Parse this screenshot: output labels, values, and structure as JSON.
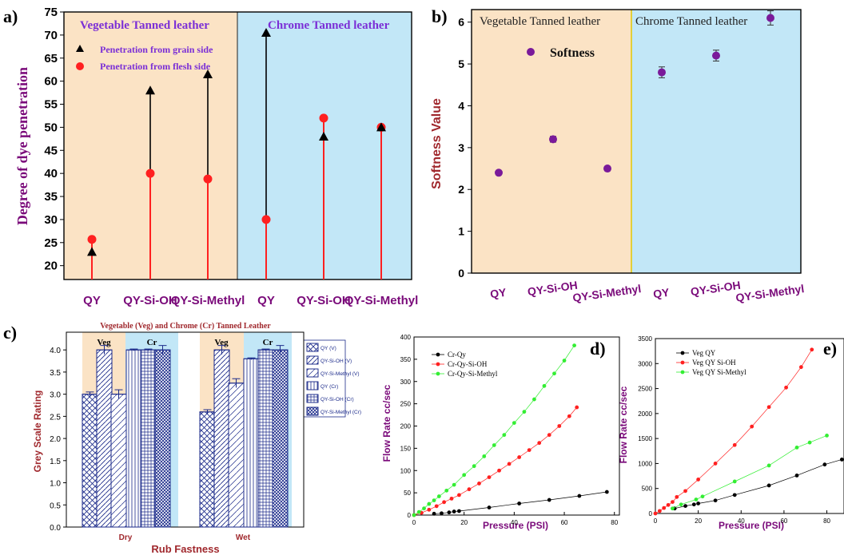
{
  "colors": {
    "veg_bg": "#fbe3c5",
    "cr_bg": "#c2e7f7",
    "a_title": "#7b2fd6",
    "axis_label": "#7a0a7a",
    "bar_stroke": "#1b2a8a",
    "c_ylabel": "#a0282d",
    "c_title": "#a0282d",
    "tick_purple": "#7a0a7a",
    "black": "#000000",
    "red": "#ff2020",
    "green": "#33ee33"
  },
  "panels": {
    "a": "a)",
    "b": "b)",
    "c": "c)",
    "d": "d)",
    "e": "e)"
  },
  "chart_data": [
    {
      "id": "a",
      "type": "scatter",
      "region_labels": [
        "Vegetable Tanned leather",
        "Chrome Tanned leather"
      ],
      "ylabel": "Degree of dye penetration",
      "ylim": [
        17,
        75
      ],
      "yticks": [
        20,
        25,
        30,
        35,
        40,
        45,
        50,
        55,
        60,
        65,
        70,
        75
      ],
      "categories": [
        "QY",
        "QY-Si-OH",
        "QY-Si-Methyl",
        "QY",
        "QY-Si-OH",
        "QY-Si-Methyl"
      ],
      "series": [
        {
          "name": "Penetration from grain side",
          "marker": "triangle",
          "values": [
            23,
            58,
            61.5,
            70.5,
            48,
            50
          ]
        },
        {
          "name": "Penetration from flesh side",
          "marker": "circle",
          "values": [
            25.7,
            40,
            38.8,
            30,
            52,
            50
          ]
        }
      ]
    },
    {
      "id": "b",
      "type": "scatter",
      "region_labels": [
        "Vegetable Tanned leather",
        "Chrome Tanned leather"
      ],
      "legend": "Softness",
      "ylabel": "Softness Value",
      "ylim": [
        0,
        6.3
      ],
      "yticks": [
        0,
        1,
        2,
        3,
        4,
        5,
        6
      ],
      "categories": [
        "QY",
        "QY-Si-OH",
        "QY-Si-Methyl",
        "QY",
        "QY-Si-OH",
        "QY-Si-Methyl"
      ],
      "values": [
        2.4,
        3.2,
        2.5,
        4.8,
        5.2,
        6.1
      ],
      "errors": [
        0.04,
        0.07,
        0.05,
        0.13,
        0.13,
        0.17
      ]
    },
    {
      "id": "c",
      "type": "bar",
      "title": "Vegetable (Veg) and Chrome (Cr) Tanned Leather",
      "ylabel": "Grey Scale Rating",
      "xlabel": "Rub Fastness",
      "ylim": [
        0,
        4.4
      ],
      "yticks": [
        "0.0",
        "0.5",
        "1.0",
        "1.5",
        "2.0",
        "2.5",
        "3.0",
        "3.5",
        "4.0"
      ],
      "categories": [
        "Dry",
        "Wet"
      ],
      "group_labels": [
        "Veg",
        "Cr"
      ],
      "series": [
        {
          "name": "QY (V)",
          "values": [
            3.0,
            2.6
          ],
          "errors": [
            0.05,
            0.05
          ]
        },
        {
          "name": "QY-Si-OH (V)",
          "values": [
            4.0,
            4.0
          ],
          "errors": [
            0.1,
            0.1
          ]
        },
        {
          "name": "QY-Si-Methyl (V)",
          "values": [
            3.0,
            3.25
          ],
          "errors": [
            0.1,
            0.1
          ]
        },
        {
          "name": "QY (Cr)",
          "values": [
            4.0,
            3.8
          ],
          "errors": [
            0.02,
            0.02
          ]
        },
        {
          "name": "QY-Si-OH (Cr)",
          "values": [
            4.0,
            4.0
          ],
          "errors": [
            0.02,
            0.02
          ]
        },
        {
          "name": "QY-Si-Methyl (Cr)",
          "values": [
            4.0,
            4.0
          ],
          "errors": [
            0.1,
            0.1
          ]
        }
      ]
    },
    {
      "id": "d",
      "type": "line",
      "ylabel": "Flow Rate cc/sec",
      "xlabel": "Pressure (PSI)",
      "xlim": [
        0,
        82
      ],
      "ylim": [
        0,
        400
      ],
      "xticks": [
        0,
        20,
        40,
        60,
        80
      ],
      "yticks": [
        0,
        50,
        100,
        150,
        200,
        250,
        300,
        350,
        400
      ],
      "series": [
        {
          "name": "Cr-Qy",
          "x": [
            8,
            11,
            14,
            16,
            18,
            30,
            42,
            54,
            66,
            77
          ],
          "y": [
            3,
            4,
            6,
            8,
            9,
            17,
            26,
            34,
            43,
            52
          ]
        },
        {
          "name": "Cr-Qy-Si-OH",
          "x": [
            0,
            3,
            6,
            9,
            12,
            15,
            18,
            22,
            26,
            30,
            34,
            38,
            42,
            46,
            50,
            54,
            58,
            62,
            65
          ],
          "y": [
            0,
            5,
            12,
            20,
            29,
            37,
            45,
            58,
            71,
            85,
            100,
            115,
            130,
            146,
            162,
            180,
            200,
            222,
            242
          ]
        },
        {
          "name": "Cr-Qy-Si-Methyl",
          "x": [
            0,
            2,
            4,
            6,
            8,
            10,
            13,
            16,
            20,
            24,
            28,
            32,
            36,
            40,
            44,
            48,
            52,
            56,
            60,
            64
          ],
          "y": [
            0,
            7,
            15,
            25,
            33,
            42,
            55,
            68,
            90,
            110,
            132,
            157,
            180,
            207,
            232,
            260,
            290,
            318,
            347,
            381
          ]
        }
      ]
    },
    {
      "id": "e",
      "type": "line",
      "ylabel": "Flow Rate cc/sec",
      "xlabel": "Pressure (PSI)",
      "xlim": [
        0,
        88
      ],
      "ylim": [
        0,
        3500
      ],
      "xticks": [
        0,
        20,
        40,
        60,
        80
      ],
      "yticks": [
        0,
        500,
        1000,
        1500,
        2000,
        2500,
        3000,
        3500
      ],
      "series": [
        {
          "name": "Veg QY",
          "x": [
            9,
            14,
            18,
            20,
            28,
            37,
            53,
            66,
            79,
            87
          ],
          "y": [
            100,
            150,
            180,
            200,
            260,
            370,
            560,
            760,
            980,
            1080
          ]
        },
        {
          "name": "Veg QY Si-OH",
          "x": [
            0,
            2,
            4,
            6,
            8,
            10,
            14,
            20,
            28,
            37,
            45,
            53,
            61,
            68,
            73
          ],
          "y": [
            0,
            50,
            110,
            170,
            230,
            330,
            450,
            680,
            1000,
            1370,
            1740,
            2130,
            2520,
            2930,
            3280
          ]
        },
        {
          "name": "Veg QY Si-Methyl",
          "x": [
            8,
            12,
            19,
            22,
            37,
            53,
            66,
            72,
            80
          ],
          "y": [
            100,
            180,
            280,
            340,
            640,
            960,
            1320,
            1420,
            1560
          ]
        }
      ]
    }
  ]
}
